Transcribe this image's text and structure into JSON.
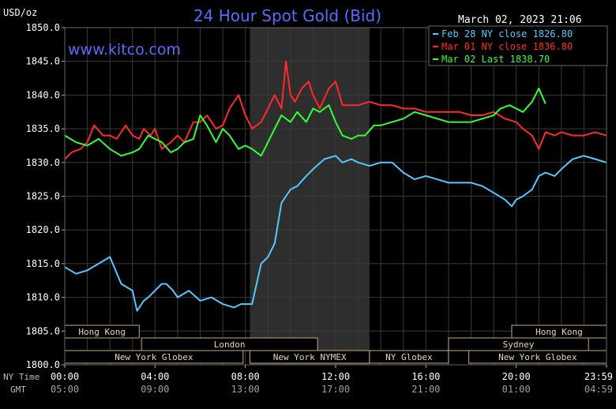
{
  "header": {
    "unit": "USD/oz",
    "title": "24 Hour Spot Gold (Bid)",
    "timestamp": "March 02, 2023 21:06",
    "watermark": "www.kitco.com"
  },
  "legend": [
    {
      "label": "Feb 28 NY close 1826.80",
      "color": "#55c8ff"
    },
    {
      "label": "Mar 01 NY close 1836.80",
      "color": "#ff2a2a"
    },
    {
      "label": "Mar 02 Last 1838.70",
      "color": "#33ff33"
    }
  ],
  "axis_captions": {
    "ny_time": "NY Time",
    "gmt": "GMT"
  },
  "sessions_top": [
    {
      "label": "Hong Kong",
      "from": 0,
      "to": 3.3
    },
    {
      "label": "Hong Kong",
      "from": 19.8,
      "to": 24
    }
  ],
  "sessions_mid": [
    {
      "label": "London",
      "from": 3.4,
      "to": 11.2
    },
    {
      "label": "Sydney",
      "from": 17.0,
      "to": 23.2
    }
  ],
  "sessions_bot": [
    {
      "label": "New York Globex",
      "from": 0,
      "to": 7.9
    },
    {
      "label": "New York NYMEX",
      "from": 8.2,
      "to": 13.5
    },
    {
      "label": "NY Globex",
      "from": 13.5,
      "to": 17.0
    },
    {
      "label": "New York Globex",
      "from": 17.9,
      "to": 24
    }
  ],
  "chart_data": {
    "type": "line",
    "title": "24 Hour Spot Gold (Bid)",
    "ylabel": "USD/oz",
    "ylim": [
      1800,
      1850
    ],
    "y_ticks": [
      "1850.0",
      "1845.0",
      "1840.0",
      "1835.0",
      "1830.0",
      "1825.0",
      "1820.0",
      "1815.0",
      "1810.0",
      "1805.0",
      "1800.0"
    ],
    "xlim": [
      0,
      24
    ],
    "x_ticks_ny": [
      "00:00",
      "04:00",
      "08:00",
      "12:00",
      "16:00",
      "20:00",
      "23:59"
    ],
    "x_ticks_gmt": [
      "05:00",
      "09:00",
      "13:00",
      "17:00",
      "21:00",
      "01:00",
      "04:59"
    ],
    "x_tick_hours": [
      0,
      4,
      8,
      12,
      16,
      20,
      24
    ],
    "shaded_range": [
      8.2,
      13.5
    ],
    "grid": true,
    "series": [
      {
        "name": "Feb 28 NY close 1826.80",
        "color": "#55c8ff",
        "x": [
          0,
          0.5,
          1,
          1.5,
          2,
          2.5,
          3,
          3.2,
          3.5,
          3.7,
          4,
          4.3,
          4.5,
          4.8,
          5,
          5.5,
          6,
          6.5,
          7,
          7.5,
          7.8,
          8,
          8.3,
          8.7,
          9,
          9.3,
          9.6,
          9.8,
          10,
          10.3,
          10.7,
          11,
          11.5,
          12,
          12.3,
          12.7,
          13,
          13.5,
          14,
          14.5,
          15,
          15.5,
          16,
          16.5,
          17,
          17.5,
          18,
          18.5,
          19,
          19.5,
          19.8,
          20,
          20.3,
          20.7,
          21,
          21.3,
          21.7,
          22,
          22.5,
          23,
          23.5,
          24
        ],
        "y": [
          1814.5,
          1813.5,
          1814,
          1815,
          1816,
          1812,
          1811,
          1808,
          1809.5,
          1810,
          1811,
          1812,
          1812,
          1811,
          1810,
          1811,
          1809.5,
          1810,
          1809,
          1808.5,
          1809,
          1809,
          1809,
          1815,
          1816,
          1818,
          1824,
          1825,
          1826,
          1826.5,
          1828,
          1829,
          1830.5,
          1831,
          1830,
          1830.5,
          1830,
          1829.5,
          1830,
          1830,
          1828.5,
          1827.5,
          1828,
          1827.5,
          1827,
          1827,
          1827,
          1826.5,
          1825.5,
          1824.5,
          1823.5,
          1824.5,
          1825,
          1826,
          1828,
          1828.5,
          1828,
          1829,
          1830.5,
          1831,
          1830.5,
          1830
        ]
      },
      {
        "name": "Mar 01 NY close 1836.80",
        "color": "#ff2a2a",
        "x": [
          0,
          0.3,
          0.7,
          1,
          1.3,
          1.7,
          2,
          2.3,
          2.7,
          3,
          3.3,
          3.5,
          3.8,
          4,
          4.3,
          4.7,
          5,
          5.3,
          5.7,
          6,
          6.3,
          6.7,
          7,
          7.3,
          7.7,
          8,
          8.3,
          8.7,
          9,
          9.3,
          9.6,
          9.8,
          10,
          10.2,
          10.5,
          10.8,
          11,
          11.3,
          11.7,
          12,
          12.3,
          12.7,
          13,
          13.5,
          14,
          14.5,
          15,
          15.5,
          16,
          16.5,
          17,
          17.5,
          18,
          18.5,
          19,
          19.5,
          20,
          20.3,
          20.7,
          21,
          21.3,
          21.7,
          22,
          22.5,
          23,
          23.5,
          24
        ],
        "y": [
          1830.5,
          1831.5,
          1832,
          1833,
          1835.5,
          1834,
          1834,
          1833.5,
          1835.5,
          1834,
          1833.5,
          1835,
          1834,
          1835,
          1832,
          1833,
          1834,
          1833,
          1836,
          1836,
          1837,
          1835,
          1835.5,
          1838,
          1840,
          1837,
          1835,
          1836,
          1838,
          1840,
          1838,
          1845,
          1840,
          1839,
          1841,
          1842,
          1840,
          1838,
          1841,
          1842,
          1838.5,
          1838.5,
          1838.5,
          1839,
          1838.5,
          1838.5,
          1838,
          1838,
          1837.5,
          1837.5,
          1837.5,
          1837.5,
          1837,
          1837,
          1837.5,
          1836.5,
          1836,
          1835,
          1834,
          1832,
          1834.5,
          1834,
          1834.5,
          1834,
          1834,
          1834.5,
          1834
        ]
      },
      {
        "name": "Mar 02 Last 1838.70",
        "color": "#33ff33",
        "x": [
          0,
          0.5,
          1,
          1.5,
          2,
          2.5,
          3,
          3.3,
          3.7,
          4,
          4.3,
          4.7,
          5,
          5.3,
          5.7,
          6,
          6.3,
          6.7,
          7,
          7.3,
          7.7,
          8,
          8.3,
          8.7,
          9,
          9.3,
          9.6,
          10,
          10.3,
          10.7,
          11,
          11.3,
          11.7,
          12,
          12.3,
          12.7,
          13,
          13.3,
          13.7,
          14,
          14.5,
          15,
          15.5,
          16,
          16.5,
          17,
          17.5,
          18,
          18.5,
          19,
          19.3,
          19.7,
          20,
          20.3,
          20.7,
          21,
          21.3
        ],
        "y": [
          1834,
          1833,
          1832.5,
          1833.5,
          1832,
          1831,
          1831.5,
          1832,
          1834,
          1833.5,
          1833,
          1831.5,
          1832,
          1833,
          1833.5,
          1837,
          1835.5,
          1833,
          1835,
          1834,
          1832,
          1832.5,
          1832,
          1831,
          1833,
          1835,
          1837,
          1836,
          1837.5,
          1836,
          1838,
          1837.5,
          1838.5,
          1836,
          1834,
          1833.5,
          1834,
          1834,
          1835.5,
          1835.5,
          1836,
          1836.5,
          1837.5,
          1837,
          1836.5,
          1836,
          1836,
          1836,
          1836.5,
          1837,
          1838,
          1838.5,
          1838,
          1837.5,
          1839,
          1841,
          1838.7
        ]
      }
    ]
  }
}
